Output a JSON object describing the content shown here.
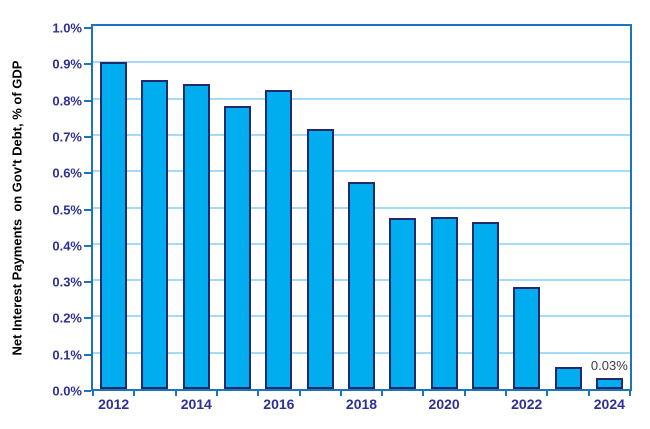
{
  "chart_data": {
    "type": "bar",
    "title": "",
    "ylabel": "Net Interest Payments  on Gov't Debt, % of GDP",
    "xlabel": "",
    "categories": [
      "2012",
      "2013",
      "2014",
      "2015",
      "2016",
      "2017",
      "2018",
      "2019",
      "2020",
      "2021",
      "2022",
      "2023",
      "2024"
    ],
    "values": [
      0.9,
      0.85,
      0.84,
      0.78,
      0.825,
      0.715,
      0.57,
      0.47,
      0.475,
      0.46,
      0.28,
      0.06,
      0.03
    ],
    "unit": "% of GDP",
    "ylim": [
      0.0,
      1.0
    ],
    "yticks": [
      {
        "value": 0.0,
        "label": "0.0%"
      },
      {
        "value": 0.1,
        "label": "0.1%"
      },
      {
        "value": 0.2,
        "label": "0.2%"
      },
      {
        "value": 0.3,
        "label": "0.3%"
      },
      {
        "value": 0.4,
        "label": "0.4%"
      },
      {
        "value": 0.5,
        "label": "0.5%"
      },
      {
        "value": 0.6,
        "label": "0.6%"
      },
      {
        "value": 0.7,
        "label": "0.7%"
      },
      {
        "value": 0.8,
        "label": "0.8%"
      },
      {
        "value": 0.9,
        "label": "0.9%"
      },
      {
        "value": 1.0,
        "label": "1.0%"
      }
    ],
    "xticks_shown": [
      "2012",
      "2014",
      "2016",
      "2018",
      "2020",
      "2022",
      "2024"
    ],
    "annotation": {
      "text": "0.03%",
      "category": "2024"
    },
    "grid": true,
    "legend": "none",
    "colors": {
      "bar_fill": "#00AEEF",
      "bar_border": "#232A6B",
      "gridline": "#A4DCF7",
      "plot_border": "#1C75BC",
      "tick_label": "#2E3192",
      "axis_title": "#000000",
      "annotation": "#3D3D3D"
    }
  }
}
